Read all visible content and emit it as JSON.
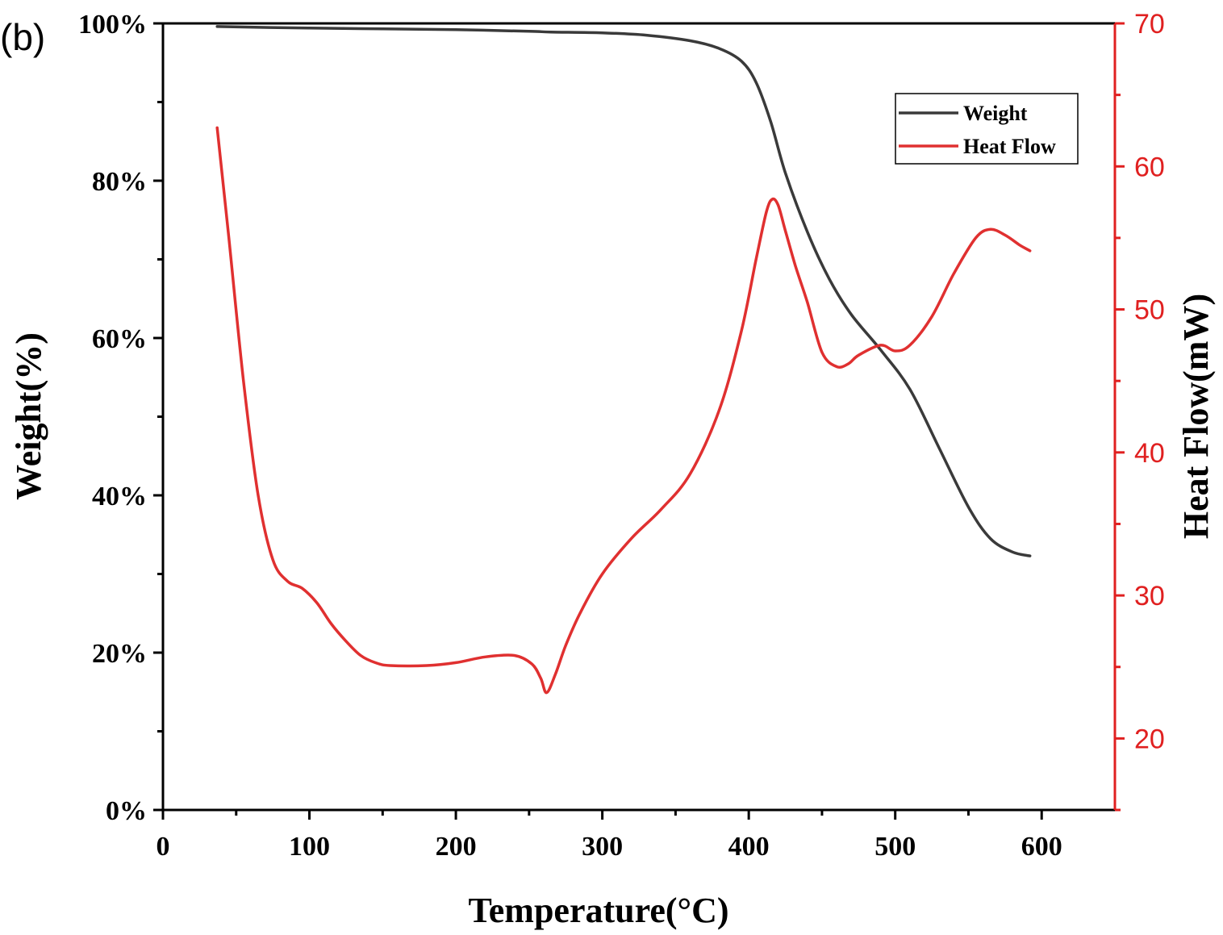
{
  "panel_label": "(b)",
  "colors": {
    "weight": "#3a3a3a",
    "heat_flow": "#e03030",
    "right_axis": "#e02020",
    "axes": "#000000"
  },
  "chart_data": {
    "type": "line",
    "title": "",
    "xlabel": "Temperature(°C)",
    "ylabel_left": "Weight(%)",
    "ylabel_right": "Heat Flow(mW)",
    "xlim": [
      0,
      650
    ],
    "ylim_left": [
      0,
      100
    ],
    "ylim_right": [
      15,
      70
    ],
    "x_ticks": [
      0,
      100,
      200,
      300,
      400,
      500,
      600
    ],
    "x_tick_labels": [
      "0",
      "100",
      "200",
      "300",
      "400",
      "500",
      "600"
    ],
    "left_ticks": [
      0,
      20,
      40,
      60,
      80,
      100
    ],
    "left_tick_labels": [
      "0%",
      "20%",
      "40%",
      "60%",
      "80%",
      "100%"
    ],
    "right_ticks": [
      20,
      30,
      40,
      50,
      60,
      70
    ],
    "right_tick_labels": [
      "20",
      "30",
      "40",
      "50",
      "60",
      "70"
    ],
    "legend_position": "top-right",
    "series": [
      {
        "name": "Weight",
        "axis": "left",
        "x": [
          37,
          100,
          150,
          200,
          250,
          265,
          300,
          330,
          360,
          380,
          395,
          405,
          415,
          425,
          440,
          455,
          470,
          490,
          510,
          530,
          550,
          565,
          580,
          592
        ],
        "y": [
          99.6,
          99.4,
          99.3,
          99.2,
          99.0,
          98.9,
          98.8,
          98.5,
          97.8,
          96.8,
          95.2,
          92.5,
          87.5,
          81.0,
          73.5,
          67.5,
          63.0,
          58.5,
          53.5,
          46.0,
          38.5,
          34.5,
          32.8,
          32.3
        ]
      },
      {
        "name": "Heat Flow",
        "axis": "right",
        "x": [
          37,
          45,
          55,
          65,
          75,
          85,
          95,
          105,
          115,
          125,
          135,
          145,
          155,
          180,
          200,
          220,
          240,
          252,
          258,
          262,
          268,
          275,
          285,
          300,
          320,
          340,
          360,
          380,
          395,
          405,
          412,
          416,
          420,
          425,
          432,
          440,
          450,
          460,
          468,
          475,
          490,
          500,
          510,
          525,
          540,
          555,
          565,
          575,
          585,
          592
        ],
        "y": [
          62.7,
          55.0,
          45.0,
          37.0,
          32.5,
          31.0,
          30.5,
          29.5,
          28.0,
          26.8,
          25.8,
          25.3,
          25.1,
          25.1,
          25.3,
          25.7,
          25.8,
          25.2,
          24.2,
          23.2,
          24.5,
          26.5,
          28.8,
          31.5,
          34.0,
          36.0,
          38.5,
          43.0,
          48.5,
          53.5,
          56.8,
          57.7,
          57.3,
          55.5,
          53.0,
          50.5,
          47.0,
          46.0,
          46.2,
          46.8,
          47.5,
          47.1,
          47.5,
          49.5,
          52.5,
          55.0,
          55.6,
          55.2,
          54.5,
          54.1
        ]
      }
    ]
  }
}
